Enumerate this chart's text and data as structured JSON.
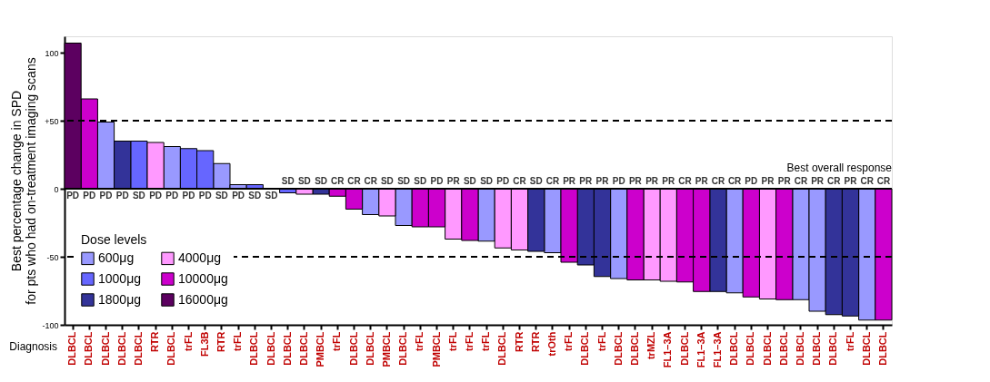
{
  "chart_data": {
    "type": "bar",
    "stacked": true,
    "ylabel": "Best percentage change in SPD\nfor pts who had on-treatment imaging scans",
    "legend_title": "Dose levels",
    "legend": "bottom left",
    "grid": false,
    "annotations": [
      "Best overall response",
      "Diagnosis"
    ],
    "categories": [
      "DLBCL",
      "DLBCL",
      "DLBCL",
      "DLBCL",
      "DLBCL",
      "RTR",
      "DLBCL",
      "trFL",
      "FL3B",
      "RTR",
      "trFL",
      "DLBCL",
      "DLBCL",
      "DLBCL",
      "DLBCL",
      "PMBCL",
      "trFL",
      "DLBCL",
      "DLBCL",
      "PMBCL",
      "DLBCL",
      "trFL",
      "PMBCL",
      "trFL",
      "trFL",
      "trFL",
      "DLBCL",
      "RTR",
      "RTR",
      "trOth",
      "trFL",
      "DLBCL",
      "trFL",
      "DLBCL",
      "DLBCL",
      "trMZL",
      "FL1–3A",
      "DLBCL",
      "FL1–3A",
      "FL1–3A",
      "DLBCL",
      "DLBCL",
      "DLBCL",
      "DLBCL",
      "DLBCL",
      "DLBCL",
      "DLBCL",
      "trFL",
      "DLBCL",
      "DLBCL"
    ],
    "series": [
      {
        "name": "600μg",
        "color": "#9999ff",
        "values": [
          null,
          null,
          49,
          null,
          null,
          null,
          31,
          null,
          null,
          18.5,
          3,
          null,
          null,
          null,
          null,
          null,
          null,
          null,
          -19,
          null,
          -27,
          null,
          null,
          null,
          null,
          -38.5,
          null,
          null,
          null,
          -47,
          null,
          null,
          null,
          -66,
          null,
          null,
          null,
          null,
          null,
          null,
          -76.5,
          null,
          null,
          null,
          -81.5,
          -90,
          null,
          null,
          -96.5,
          null
        ],
        "value_labels": [
          null,
          null,
          "PD",
          null,
          null,
          null,
          "PD",
          null,
          null,
          "SD",
          "PD",
          null,
          null,
          null,
          null,
          null,
          null,
          null,
          "CR",
          null,
          "SD",
          null,
          null,
          null,
          null,
          "SD",
          null,
          null,
          null,
          "CR",
          null,
          null,
          null,
          "PD",
          null,
          null,
          null,
          null,
          null,
          null,
          "CR",
          null,
          null,
          null,
          "CR",
          "PR",
          null,
          null,
          "CR",
          null
        ]
      },
      {
        "name": "1000μg",
        "color": "#6666ff",
        "values": [
          null,
          null,
          null,
          null,
          35,
          null,
          null,
          29.5,
          28,
          null,
          null,
          3,
          0,
          -3,
          null,
          null,
          null,
          null,
          null,
          null,
          null,
          null,
          null,
          null,
          null,
          null,
          null,
          null,
          null,
          null,
          null,
          null,
          null,
          null,
          null,
          null,
          null,
          null,
          null,
          null,
          null,
          null,
          null,
          null,
          null,
          null,
          null,
          null,
          null,
          null
        ],
        "value_labels": [
          null,
          null,
          null,
          null,
          "SD",
          null,
          null,
          "PD",
          "PD",
          null,
          null,
          "SD",
          "SD",
          "SD",
          null,
          null,
          null,
          null,
          null,
          null,
          null,
          null,
          null,
          null,
          null,
          null,
          null,
          null,
          null,
          null,
          null,
          null,
          null,
          null,
          null,
          null,
          null,
          null,
          null,
          null,
          null,
          null,
          null,
          null,
          null,
          null,
          null,
          null,
          null,
          null
        ]
      },
      {
        "name": "1800μg",
        "color": "#333399",
        "values": [
          null,
          null,
          null,
          35,
          null,
          null,
          null,
          null,
          null,
          null,
          null,
          null,
          null,
          null,
          null,
          -4,
          null,
          null,
          null,
          null,
          null,
          null,
          null,
          null,
          null,
          null,
          null,
          null,
          -46,
          null,
          null,
          -56,
          -64.5,
          null,
          null,
          null,
          null,
          null,
          null,
          -75.5,
          null,
          null,
          null,
          null,
          null,
          null,
          -92.5,
          -93.5,
          null,
          null
        ],
        "value_labels": [
          null,
          null,
          null,
          "PD",
          null,
          null,
          null,
          null,
          null,
          null,
          null,
          null,
          null,
          null,
          null,
          "SD",
          null,
          null,
          null,
          null,
          null,
          null,
          null,
          null,
          null,
          null,
          null,
          null,
          "SD",
          null,
          null,
          "PR",
          "PR",
          null,
          null,
          null,
          null,
          null,
          null,
          "CR",
          null,
          null,
          null,
          null,
          null,
          null,
          "CR",
          "PR",
          null,
          null
        ]
      },
      {
        "name": "4000μg",
        "color": "#ff99ff",
        "values": [
          null,
          null,
          null,
          null,
          null,
          34,
          null,
          null,
          null,
          null,
          null,
          null,
          null,
          null,
          -4,
          null,
          null,
          null,
          null,
          -20,
          null,
          null,
          null,
          -37,
          null,
          null,
          -43.5,
          -45,
          null,
          null,
          null,
          null,
          null,
          null,
          null,
          -67,
          -68,
          null,
          null,
          null,
          null,
          null,
          -81,
          null,
          null,
          null,
          null,
          null,
          null,
          null
        ],
        "value_labels": [
          null,
          null,
          null,
          null,
          null,
          "PD",
          null,
          null,
          null,
          null,
          null,
          null,
          null,
          null,
          "SD",
          null,
          null,
          null,
          null,
          "SD",
          null,
          null,
          null,
          "PR",
          null,
          null,
          "PD",
          "CR",
          null,
          null,
          null,
          null,
          null,
          null,
          null,
          "PR",
          "PR",
          null,
          null,
          null,
          null,
          null,
          "PR",
          null,
          null,
          null,
          null,
          null,
          null,
          null
        ]
      },
      {
        "name": "10000μg",
        "color": "#cc00cc",
        "values": [
          null,
          66,
          null,
          null,
          null,
          null,
          null,
          null,
          null,
          null,
          null,
          null,
          null,
          null,
          null,
          null,
          -5.5,
          -15,
          null,
          null,
          null,
          -28,
          -28,
          null,
          -38,
          null,
          null,
          null,
          null,
          null,
          -54,
          null,
          null,
          null,
          -67,
          null,
          null,
          -68.5,
          -75.5,
          null,
          null,
          -79.5,
          null,
          -81.5,
          null,
          null,
          null,
          null,
          null,
          -96.5
        ],
        "value_labels": [
          null,
          "PD",
          null,
          null,
          null,
          null,
          null,
          null,
          null,
          null,
          null,
          null,
          null,
          null,
          null,
          null,
          "CR",
          "CR",
          null,
          null,
          null,
          "SD",
          "PD",
          null,
          "SD",
          null,
          null,
          null,
          null,
          null,
          "PR",
          null,
          null,
          null,
          "PR",
          null,
          null,
          "CR",
          "PR",
          null,
          null,
          "PD",
          null,
          "PR",
          null,
          null,
          null,
          null,
          null,
          "CR"
        ]
      },
      {
        "name": "16000μg",
        "color": "#5c0060",
        "values": [
          107,
          null,
          null,
          null,
          null,
          null,
          null,
          null,
          null,
          null,
          null,
          null,
          null,
          null,
          null,
          null,
          null,
          null,
          null,
          null,
          null,
          null,
          null,
          null,
          null,
          null,
          null,
          null,
          null,
          null,
          null,
          null,
          null,
          null,
          null,
          null,
          null,
          null,
          null,
          null,
          null,
          null,
          null,
          null,
          null,
          null,
          null,
          null,
          null,
          null
        ],
        "value_labels": [
          "PD",
          null,
          null,
          null,
          null,
          null,
          null,
          null,
          null,
          null,
          null,
          null,
          null,
          null,
          null,
          null,
          null,
          null,
          null,
          null,
          null,
          null,
          null,
          null,
          null,
          null,
          null,
          null,
          null,
          null,
          null,
          null,
          null,
          null,
          null,
          null,
          null,
          null,
          null,
          null,
          null,
          null,
          null,
          null,
          null,
          null,
          null,
          null,
          null,
          null
        ]
      }
    ],
    "ylim": [
      -100,
      112
    ],
    "yticks": [
      -100,
      -50,
      0,
      {
        "value": 50,
        "label": "+50"
      },
      100
    ],
    "ref_lines": [
      {
        "axis": "y",
        "value": 50,
        "line_style": "dashed"
      },
      {
        "axis": "y",
        "value": -50,
        "line_style": "dashed"
      },
      {
        "axis": "y",
        "value": 0,
        "line_style": "solid"
      }
    ]
  }
}
